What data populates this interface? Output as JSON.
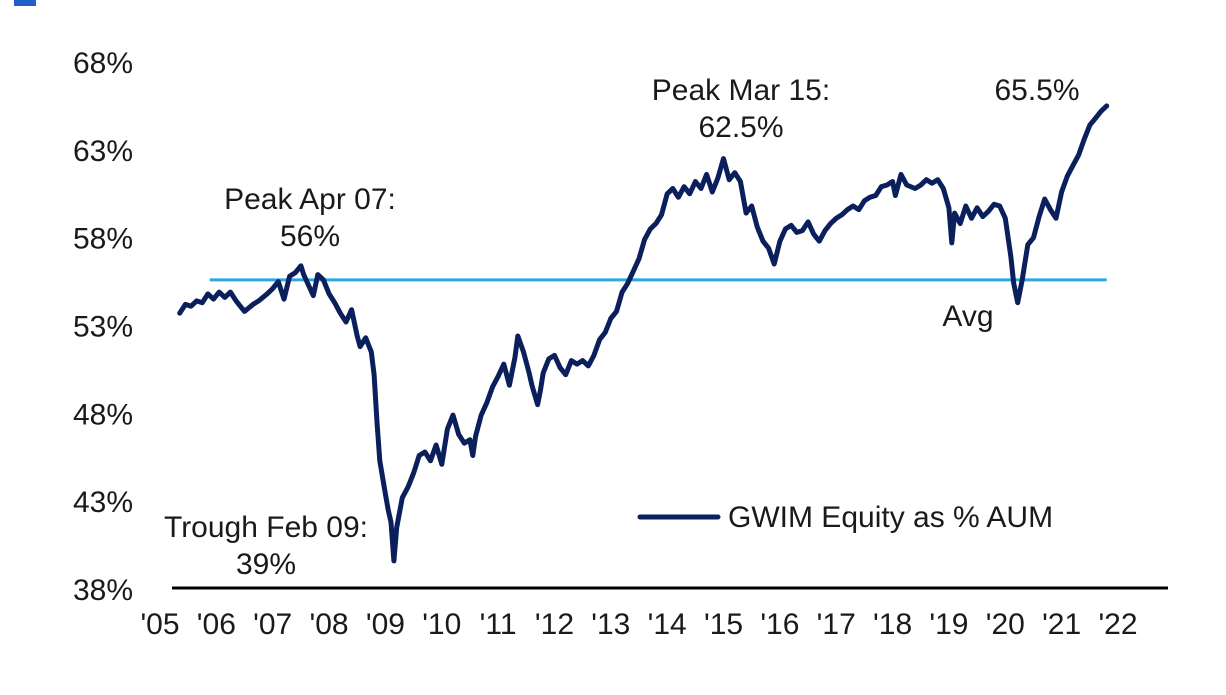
{
  "chart_data": {
    "type": "line",
    "title": "",
    "xlabel": "",
    "ylabel": "",
    "ylim": [
      38,
      68
    ],
    "xlim": [
      2005.0,
      2022.0
    ],
    "y_ticks": [
      "68%",
      "63%",
      "58%",
      "53%",
      "48%",
      "43%",
      "38%"
    ],
    "x_ticks": [
      "'05",
      "'06",
      "'07",
      "'08",
      "'09",
      "'10",
      "'11",
      "'12",
      "'13",
      "'14",
      "'15",
      "'16",
      "'17",
      "'18",
      "'19",
      "'20",
      "'21",
      "'22"
    ],
    "grid": false,
    "legend": {
      "position": "bottom-right",
      "entries": [
        "GWIM Equity as % AUM"
      ]
    },
    "colors": {
      "series": "#0b1f5c",
      "average": "#2aa8e0",
      "axis": "#000000",
      "header_marker": "#1f5fc9"
    },
    "series": [
      {
        "name": "GWIM Equity as % AUM",
        "x": [
          2005.35,
          2005.45,
          2005.55,
          2005.65,
          2005.75,
          2005.85,
          2005.95,
          2006.05,
          2006.15,
          2006.25,
          2006.35,
          2006.5,
          2006.65,
          2006.75,
          2006.9,
          2007.0,
          2007.1,
          2007.2,
          2007.3,
          2007.4,
          2007.5,
          2007.55,
          2007.65,
          2007.72,
          2007.8,
          2007.9,
          2008.0,
          2008.1,
          2008.2,
          2008.3,
          2008.4,
          2008.5,
          2008.55,
          2008.65,
          2008.75,
          2008.8,
          2008.85,
          2008.9,
          2009.0,
          2009.05,
          2009.1,
          2009.15,
          2009.2,
          2009.3,
          2009.4,
          2009.5,
          2009.6,
          2009.7,
          2009.8,
          2009.9,
          2010.0,
          2010.1,
          2010.2,
          2010.3,
          2010.4,
          2010.5,
          2010.55,
          2010.6,
          2010.7,
          2010.8,
          2010.9,
          2011.0,
          2011.1,
          2011.2,
          2011.3,
          2011.35,
          2011.45,
          2011.55,
          2011.6,
          2011.7,
          2011.75,
          2011.8,
          2011.9,
          2012.0,
          2012.1,
          2012.2,
          2012.3,
          2012.4,
          2012.5,
          2012.6,
          2012.7,
          2012.8,
          2012.9,
          2013.0,
          2013.1,
          2013.2,
          2013.3,
          2013.4,
          2013.5,
          2013.6,
          2013.7,
          2013.8,
          2013.9,
          2014.0,
          2014.1,
          2014.2,
          2014.3,
          2014.4,
          2014.5,
          2014.6,
          2014.7,
          2014.8,
          2014.9,
          2015.0,
          2015.1,
          2015.2,
          2015.3,
          2015.4,
          2015.5,
          2015.6,
          2015.7,
          2015.8,
          2015.9,
          2016.0,
          2016.1,
          2016.2,
          2016.3,
          2016.4,
          2016.5,
          2016.6,
          2016.7,
          2016.8,
          2016.9,
          2017.0,
          2017.1,
          2017.2,
          2017.3,
          2017.4,
          2017.5,
          2017.6,
          2017.7,
          2017.8,
          2017.9,
          2018.0,
          2018.05,
          2018.15,
          2018.25,
          2018.4,
          2018.5,
          2018.6,
          2018.7,
          2018.8,
          2018.9,
          2019.0,
          2019.05,
          2019.1,
          2019.2,
          2019.3,
          2019.4,
          2019.5,
          2019.6,
          2019.7,
          2019.8,
          2019.9,
          2020.0,
          2020.1,
          2020.15,
          2020.22,
          2020.3,
          2020.4,
          2020.5,
          2020.6,
          2020.7,
          2020.8,
          2020.9,
          2021.0,
          2021.1,
          2021.2,
          2021.3,
          2021.4,
          2021.5,
          2021.6,
          2021.7,
          2021.8
        ],
        "y": [
          53.7,
          54.2,
          54.1,
          54.4,
          54.3,
          54.8,
          54.5,
          54.9,
          54.6,
          54.9,
          54.4,
          53.8,
          54.2,
          54.4,
          54.8,
          55.1,
          55.5,
          54.5,
          55.8,
          56.0,
          56.4,
          55.9,
          55.2,
          54.7,
          55.9,
          55.6,
          54.8,
          54.3,
          53.7,
          53.2,
          53.9,
          52.4,
          51.8,
          52.3,
          51.5,
          50.2,
          47.5,
          45.3,
          43.4,
          42.5,
          41.8,
          39.6,
          41.5,
          43.2,
          43.8,
          44.6,
          45.6,
          45.8,
          45.3,
          46.2,
          45.1,
          47.1,
          47.9,
          46.8,
          46.3,
          46.5,
          45.6,
          46.7,
          47.9,
          48.6,
          49.5,
          50.1,
          50.8,
          49.6,
          51.2,
          52.4,
          51.5,
          50.3,
          49.6,
          48.5,
          49.3,
          50.3,
          51.1,
          51.3,
          50.6,
          50.2,
          51.0,
          50.8,
          51.0,
          50.7,
          51.3,
          52.2,
          52.6,
          53.4,
          53.8,
          54.9,
          55.4,
          56.1,
          56.8,
          57.9,
          58.5,
          58.8,
          59.3,
          60.5,
          60.8,
          60.3,
          60.9,
          60.5,
          61.2,
          60.8,
          61.6,
          60.6,
          61.4,
          62.5,
          61.3,
          61.7,
          61.2,
          59.4,
          59.8,
          58.6,
          57.8,
          57.4,
          56.5,
          57.8,
          58.5,
          58.7,
          58.3,
          58.4,
          58.9,
          58.2,
          57.8,
          58.4,
          58.8,
          59.1,
          59.3,
          59.6,
          59.8,
          59.6,
          60.1,
          60.3,
          60.4,
          60.9,
          61.0,
          61.2,
          60.4,
          61.6,
          61.0,
          60.8,
          61.0,
          61.3,
          61.1,
          61.3,
          60.8,
          59.7,
          57.7,
          59.4,
          58.8,
          59.8,
          59.1,
          59.7,
          59.2,
          59.5,
          59.9,
          59.8,
          59.1,
          56.9,
          55.4,
          54.3,
          55.6,
          57.6,
          58.0,
          59.2,
          60.2,
          59.6,
          59.1,
          60.6,
          61.5,
          62.1,
          62.7,
          63.6,
          64.4,
          64.8,
          65.2,
          65.5
        ]
      }
    ],
    "average": {
      "value": 55.6,
      "x_start": 2005.35,
      "x_end": 2021.8,
      "label": "Avg"
    },
    "annotations": [
      {
        "lines": [
          "Peak Apr 07:",
          "56%"
        ],
        "x": 2007.3,
        "y": 56.0
      },
      {
        "lines": [
          "Trough Feb 09:",
          "39%"
        ],
        "x": 2009.1,
        "y": 39.0
      },
      {
        "lines": [
          "Peak Mar 15:",
          "62.5%"
        ],
        "x": 2015.2,
        "y": 62.5
      },
      {
        "lines": [
          "65.5%"
        ],
        "x": 2021.8,
        "y": 65.5
      }
    ]
  }
}
